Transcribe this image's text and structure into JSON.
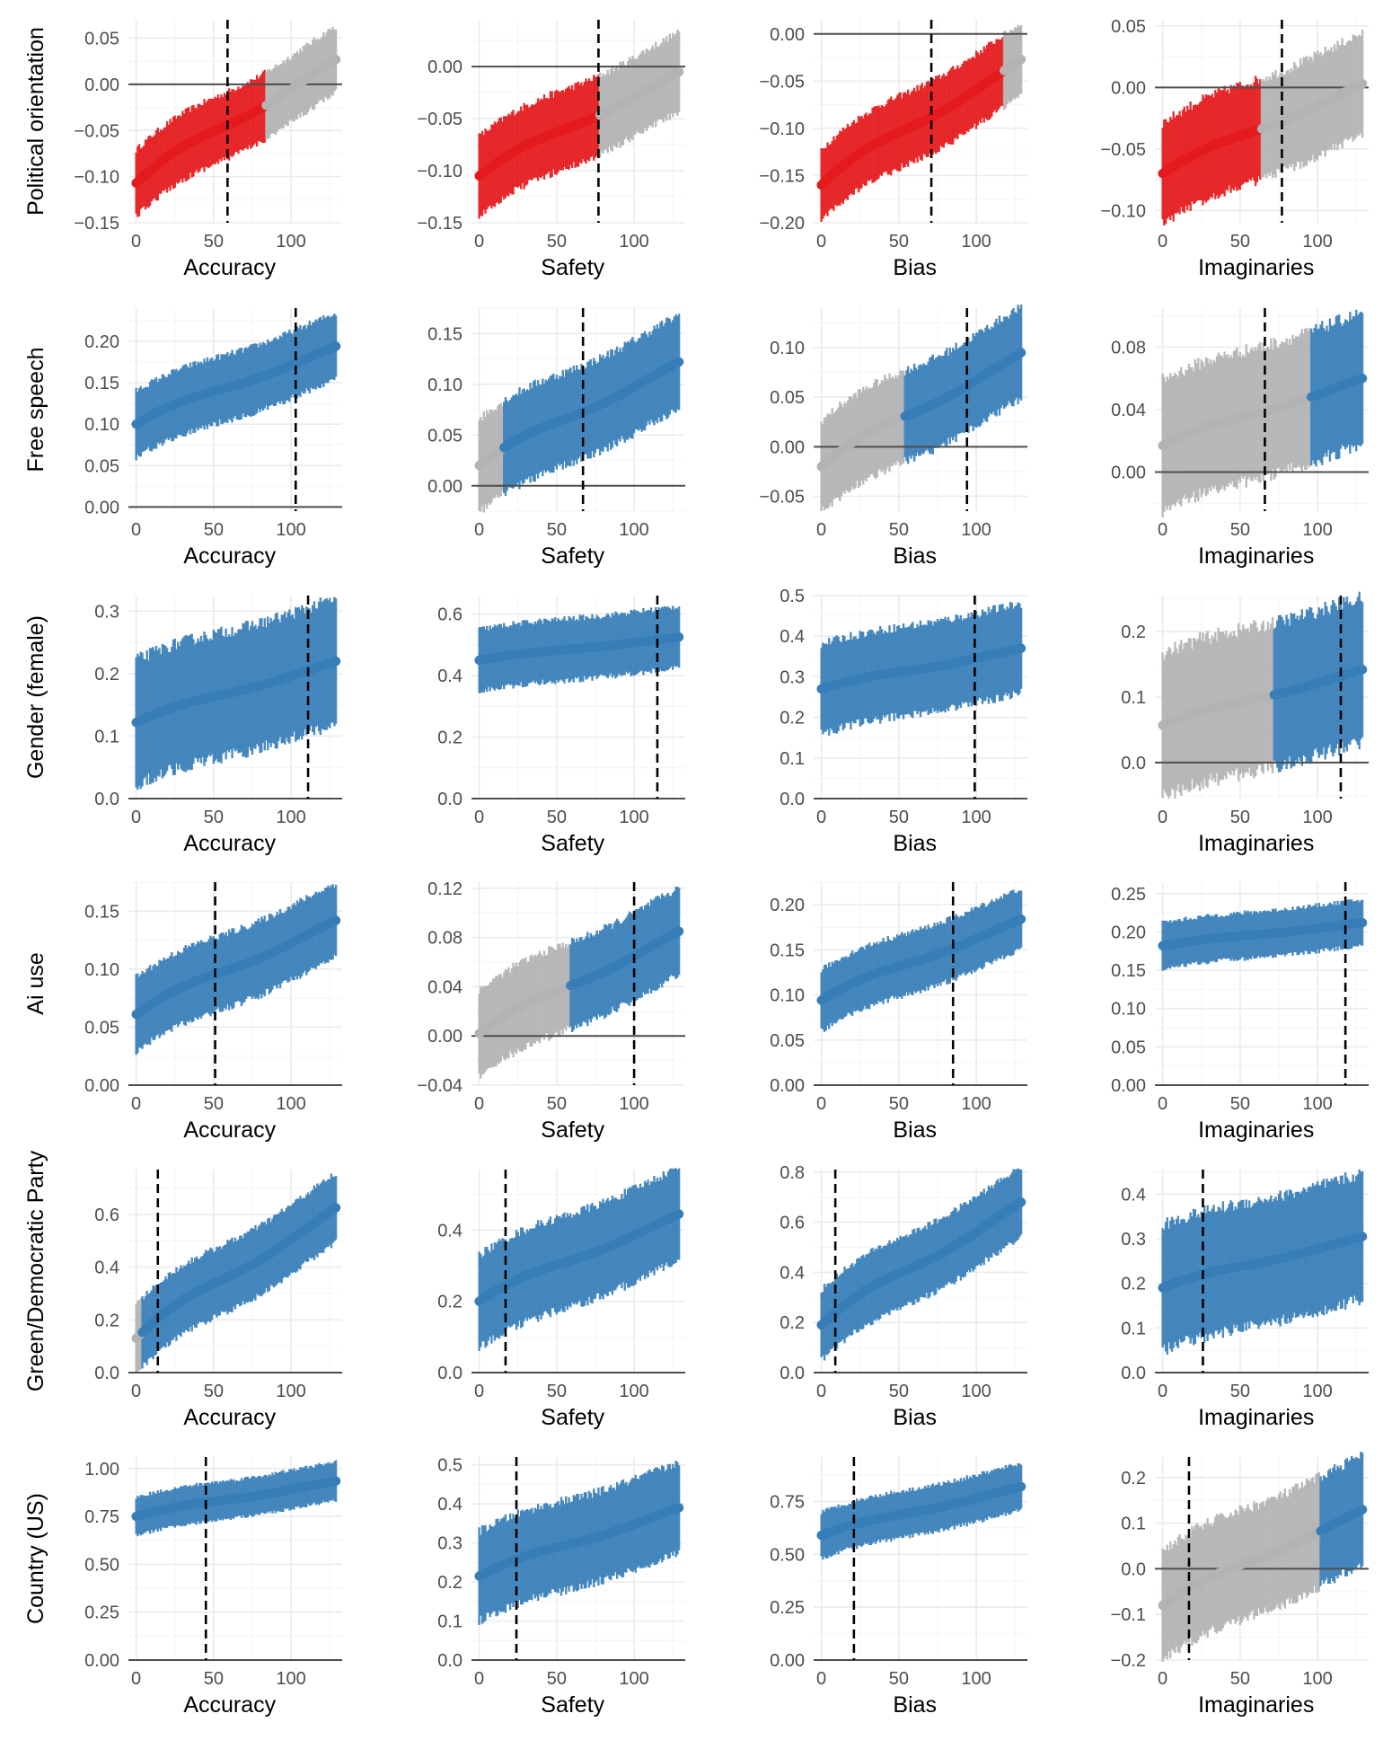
{
  "colors": {
    "negative": "#E41A1C",
    "positive": "#377EB8",
    "neutral": "#B3B3B3"
  },
  "chart_data": {
    "type": "specification-curve grid",
    "columns": [
      "Accuracy",
      "Safety",
      "Bias",
      "Imaginaries"
    ],
    "rows": [
      {
        "label": "Political orientation",
        "panels": [
          {
            "xlabel": "Accuracy",
            "ylim": [
              -0.15,
              0.07
            ],
            "yticks": [
              -0.15,
              -0.1,
              -0.05,
              0.0,
              0.05
            ],
            "y_start": -0.107,
            "y_end": 0.027,
            "halfwidth": 0.036,
            "color_segments": [
              {
                "end": 84,
                "color": "negative"
              },
              {
                "end": 130,
                "color": "neutral"
              }
            ],
            "vline": 59
          },
          {
            "xlabel": "Safety",
            "ylim": [
              -0.15,
              0.045
            ],
            "yticks": [
              -0.15,
              -0.1,
              -0.05,
              0.0
            ],
            "y_start": -0.105,
            "y_end": -0.005,
            "halfwidth": 0.038,
            "color_segments": [
              {
                "end": 78,
                "color": "negative"
              },
              {
                "end": 130,
                "color": "neutral"
              }
            ],
            "vline": 77
          },
          {
            "xlabel": "Bias",
            "ylim": [
              -0.2,
              0.015
            ],
            "yticks": [
              -0.2,
              -0.15,
              -0.1,
              -0.05,
              0.0
            ],
            "y_start": -0.16,
            "y_end": -0.027,
            "halfwidth": 0.038,
            "color_segments": [
              {
                "end": 118,
                "color": "negative"
              },
              {
                "end": 130,
                "color": "neutral"
              }
            ],
            "vline": 71
          },
          {
            "xlabel": "Imaginaries",
            "ylim": [
              -0.11,
              0.055
            ],
            "yticks": [
              -0.1,
              -0.05,
              0.0,
              0.05
            ],
            "y_start": -0.07,
            "y_end": 0.003,
            "halfwidth": 0.041,
            "color_segments": [
              {
                "end": 64,
                "color": "negative"
              },
              {
                "end": 130,
                "color": "neutral"
              }
            ],
            "vline": 77
          }
        ]
      },
      {
        "label": "Free speech",
        "panels": [
          {
            "xlabel": "Accuracy",
            "ylim": [
              -0.005,
              0.24
            ],
            "yticks": [
              0.0,
              0.05,
              0.1,
              0.15,
              0.2
            ],
            "y_start": 0.1,
            "y_end": 0.194,
            "halfwidth": 0.04,
            "color_segments": [
              {
                "end": 130,
                "color": "positive"
              }
            ],
            "vline": 103
          },
          {
            "xlabel": "Safety",
            "ylim": [
              -0.025,
              0.175
            ],
            "yticks": [
              0.0,
              0.05,
              0.1,
              0.15
            ],
            "y_start": 0.02,
            "y_end": 0.122,
            "halfwidth": 0.046,
            "color_segments": [
              {
                "end": 16,
                "color": "neutral"
              },
              {
                "end": 130,
                "color": "positive"
              }
            ],
            "vline": 67
          },
          {
            "xlabel": "Bias",
            "ylim": [
              -0.065,
              0.14
            ],
            "yticks": [
              -0.05,
              0.0,
              0.05,
              0.1
            ],
            "y_start": -0.02,
            "y_end": 0.095,
            "halfwidth": 0.046,
            "color_segments": [
              {
                "end": 54,
                "color": "neutral"
              },
              {
                "end": 130,
                "color": "positive"
              }
            ],
            "vline": 94
          },
          {
            "xlabel": "Imaginaries",
            "ylim": [
              -0.025,
              0.105
            ],
            "yticks": [
              0.0,
              0.04,
              0.08
            ],
            "y_start": 0.017,
            "y_end": 0.06,
            "halfwidth": 0.042,
            "color_segments": [
              {
                "end": 96,
                "color": "neutral"
              },
              {
                "end": 130,
                "color": "positive"
              }
            ],
            "vline": 66
          }
        ]
      },
      {
        "label": "Gender (female)",
        "panels": [
          {
            "xlabel": "Accuracy",
            "ylim": [
              0.0,
              0.325
            ],
            "yticks": [
              0.0,
              0.1,
              0.2,
              0.3
            ],
            "y_start": 0.122,
            "y_end": 0.22,
            "halfwidth": 0.1,
            "color_segments": [
              {
                "end": 130,
                "color": "positive"
              }
            ],
            "vline": 111
          },
          {
            "xlabel": "Safety",
            "ylim": [
              0.0,
              0.66
            ],
            "yticks": [
              0.0,
              0.2,
              0.4,
              0.6
            ],
            "y_start": 0.45,
            "y_end": 0.525,
            "halfwidth": 0.1,
            "color_segments": [
              {
                "end": 130,
                "color": "positive"
              }
            ],
            "vline": 115
          },
          {
            "xlabel": "Bias",
            "ylim": [
              0.0,
              0.5
            ],
            "yticks": [
              0.0,
              0.1,
              0.2,
              0.3,
              0.4,
              0.5
            ],
            "y_start": 0.27,
            "y_end": 0.37,
            "halfwidth": 0.11,
            "color_segments": [
              {
                "end": 130,
                "color": "positive"
              }
            ],
            "vline": 99
          },
          {
            "xlabel": "Imaginaries",
            "ylim": [
              -0.055,
              0.255
            ],
            "yticks": [
              0.0,
              0.1,
              0.2
            ],
            "y_start": 0.057,
            "y_end": 0.142,
            "halfwidth": 0.11,
            "color_segments": [
              {
                "end": 72,
                "color": "neutral"
              },
              {
                "end": 130,
                "color": "positive"
              }
            ],
            "vline": 115
          }
        ]
      },
      {
        "label": "Ai use",
        "panels": [
          {
            "xlabel": "Accuracy",
            "ylim": [
              0.0,
              0.175
            ],
            "yticks": [
              0.0,
              0.05,
              0.1,
              0.15
            ],
            "y_start": 0.061,
            "y_end": 0.142,
            "halfwidth": 0.032,
            "color_segments": [
              {
                "end": 130,
                "color": "positive"
              }
            ],
            "vline": 51
          },
          {
            "xlabel": "Safety",
            "ylim": [
              -0.04,
              0.125
            ],
            "yticks": [
              -0.04,
              0.0,
              0.04,
              0.08,
              0.12
            ],
            "y_start": 0.002,
            "y_end": 0.085,
            "halfwidth": 0.035,
            "color_segments": [
              {
                "end": 59,
                "color": "neutral"
              },
              {
                "end": 130,
                "color": "positive"
              }
            ],
            "vline": 100
          },
          {
            "xlabel": "Bias",
            "ylim": [
              0.0,
              0.225
            ],
            "yticks": [
              0.0,
              0.05,
              0.1,
              0.15,
              0.2
            ],
            "y_start": 0.094,
            "y_end": 0.184,
            "halfwidth": 0.034,
            "color_segments": [
              {
                "end": 130,
                "color": "positive"
              }
            ],
            "vline": 85
          },
          {
            "xlabel": "Imaginaries",
            "ylim": [
              0.0,
              0.265
            ],
            "yticks": [
              0.0,
              0.05,
              0.1,
              0.15,
              0.2,
              0.25
            ],
            "y_start": 0.182,
            "y_end": 0.212,
            "halfwidth": 0.03,
            "color_segments": [
              {
                "end": 130,
                "color": "positive"
              }
            ],
            "vline": 118
          }
        ]
      },
      {
        "label": "Green/Democratic Party",
        "panels": [
          {
            "xlabel": "Accuracy",
            "ylim": [
              0.0,
              0.77
            ],
            "yticks": [
              0.0,
              0.2,
              0.4,
              0.6
            ],
            "y_start": 0.13,
            "y_end": 0.625,
            "halfwidth": 0.13,
            "color_segments": [
              {
                "end": 4,
                "color": "neutral"
              },
              {
                "end": 130,
                "color": "positive"
              }
            ],
            "vline": 14
          },
          {
            "xlabel": "Safety",
            "ylim": [
              0.0,
              0.57
            ],
            "yticks": [
              0.0,
              0.2,
              0.4
            ],
            "y_start": 0.2,
            "y_end": 0.445,
            "halfwidth": 0.13,
            "color_segments": [
              {
                "end": 130,
                "color": "positive"
              }
            ],
            "vline": 17
          },
          {
            "xlabel": "Bias",
            "ylim": [
              0.0,
              0.81
            ],
            "yticks": [
              0.0,
              0.2,
              0.4,
              0.6,
              0.8
            ],
            "y_start": 0.19,
            "y_end": 0.68,
            "halfwidth": 0.14,
            "color_segments": [
              {
                "end": 130,
                "color": "positive"
              }
            ],
            "vline": 9
          },
          {
            "xlabel": "Imaginaries",
            "ylim": [
              0.0,
              0.455
            ],
            "yticks": [
              0.0,
              0.1,
              0.2,
              0.3,
              0.4
            ],
            "y_start": 0.19,
            "y_end": 0.305,
            "halfwidth": 0.14,
            "color_segments": [
              {
                "end": 130,
                "color": "positive"
              }
            ],
            "vline": 26
          }
        ]
      },
      {
        "label": "Country (US)",
        "panels": [
          {
            "xlabel": "Accuracy",
            "ylim": [
              0.0,
              1.06
            ],
            "yticks": [
              0.0,
              0.25,
              0.5,
              0.75,
              1.0
            ],
            "y_start": 0.75,
            "y_end": 0.935,
            "halfwidth": 0.1,
            "color_segments": [
              {
                "end": 130,
                "color": "positive"
              }
            ],
            "vline": 45
          },
          {
            "xlabel": "Safety",
            "ylim": [
              0.0,
              0.52
            ],
            "yticks": [
              0.0,
              0.1,
              0.2,
              0.3,
              0.4,
              0.5
            ],
            "y_start": 0.215,
            "y_end": 0.39,
            "halfwidth": 0.115,
            "color_segments": [
              {
                "end": 130,
                "color": "positive"
              }
            ],
            "vline": 24
          },
          {
            "xlabel": "Bias",
            "ylim": [
              0.0,
              0.96
            ],
            "yticks": [
              0.0,
              0.25,
              0.5,
              0.75
            ],
            "y_start": 0.59,
            "y_end": 0.82,
            "halfwidth": 0.11,
            "color_segments": [
              {
                "end": 130,
                "color": "positive"
              }
            ],
            "vline": 21
          },
          {
            "xlabel": "Imaginaries",
            "ylim": [
              -0.2,
              0.245
            ],
            "yticks": [
              -0.2,
              -0.1,
              0.0,
              0.1,
              0.2
            ],
            "y_start": -0.08,
            "y_end": 0.13,
            "halfwidth": 0.12,
            "color_segments": [
              {
                "end": 102,
                "color": "neutral"
              },
              {
                "end": 130,
                "color": "positive"
              }
            ],
            "vline": 17
          }
        ]
      }
    ],
    "x_domain": [
      -5,
      133
    ],
    "x_ticks": [
      0,
      50,
      100
    ],
    "n_specifications": 130
  }
}
